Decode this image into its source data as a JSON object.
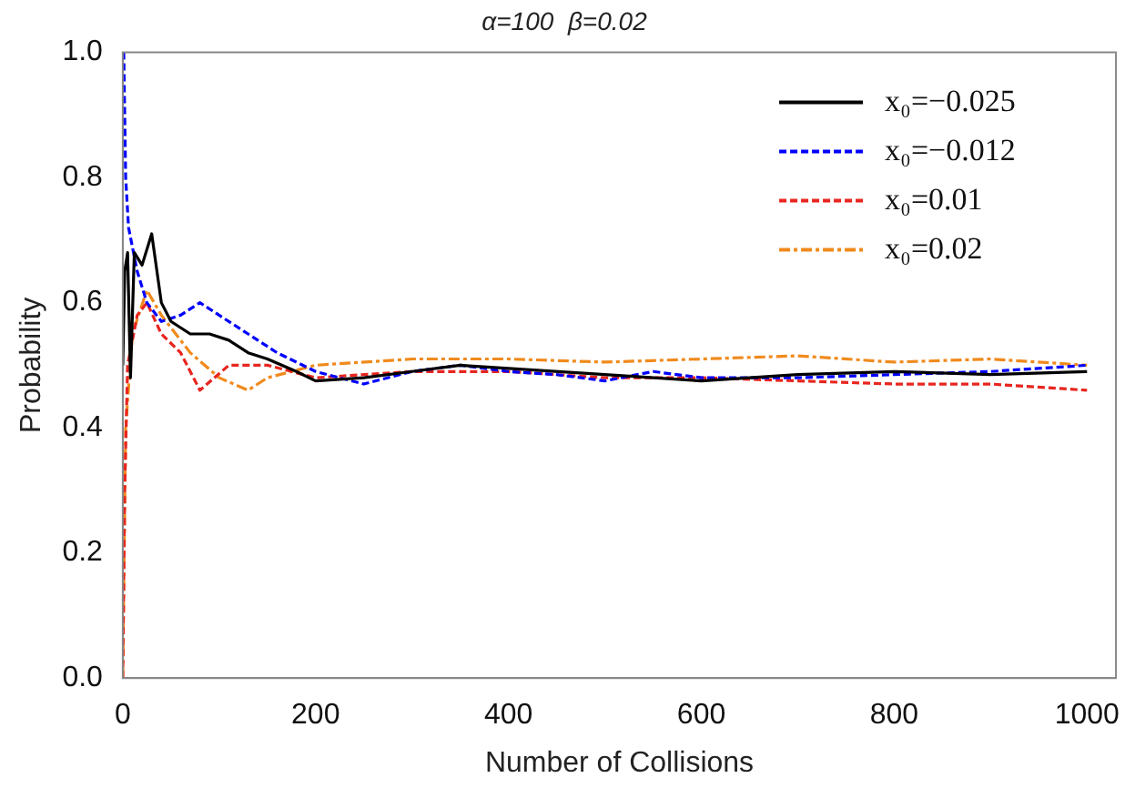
{
  "chart_data": {
    "type": "line",
    "title": "α=100  β=0.02",
    "xlabel": "Number of Collisions",
    "ylabel": "Probability",
    "xlim": [
      0,
      1030
    ],
    "xticks": [
      0,
      200,
      400,
      600,
      800,
      1000
    ],
    "ylim": [
      0,
      1
    ],
    "yticks": [
      {
        "value": 0,
        "label": "0.0"
      },
      {
        "value": 0.2,
        "label": "0.2"
      },
      {
        "value": 0.4,
        "label": "0.4"
      },
      {
        "value": 0.6,
        "label": "0.6"
      },
      {
        "value": 0.8,
        "label": "0.8"
      },
      {
        "value": 1,
        "label": "1.0"
      }
    ],
    "grid": false,
    "legend": "top right",
    "marker": "none",
    "series": [
      {
        "name": "x₀=−0.025",
        "color": "#000000",
        "line_style": "solid",
        "x": [
          0,
          2,
          5,
          8,
          12,
          20,
          30,
          40,
          50,
          70,
          90,
          110,
          130,
          150,
          180,
          200,
          250,
          300,
          350,
          400,
          500,
          600,
          700,
          800,
          900,
          1000
        ],
        "values": [
          0.5,
          0.65,
          0.68,
          0.48,
          0.68,
          0.66,
          0.71,
          0.6,
          0.57,
          0.55,
          0.55,
          0.54,
          0.52,
          0.51,
          0.49,
          0.475,
          0.48,
          0.49,
          0.5,
          0.495,
          0.485,
          0.475,
          0.485,
          0.49,
          0.485,
          0.49
        ]
      },
      {
        "name": "x₀=−0.012",
        "color": "#0000ff",
        "line_style": "dashed",
        "x": [
          1,
          3,
          6,
          15,
          25,
          40,
          60,
          80,
          100,
          130,
          160,
          200,
          250,
          300,
          350,
          400,
          450,
          500,
          550,
          600,
          700,
          800,
          900,
          1000
        ],
        "values": [
          1.0,
          0.8,
          0.72,
          0.65,
          0.6,
          0.57,
          0.58,
          0.6,
          0.58,
          0.55,
          0.52,
          0.49,
          0.47,
          0.49,
          0.5,
          0.49,
          0.485,
          0.475,
          0.49,
          0.48,
          0.48,
          0.485,
          0.49,
          0.5
        ]
      },
      {
        "name": "x₀=0.01",
        "color": "#e8251f",
        "line_style": "dashed",
        "x": [
          0,
          2,
          5,
          15,
          25,
          40,
          60,
          80,
          110,
          150,
          200,
          300,
          400,
          500,
          600,
          700,
          800,
          900,
          1000
        ],
        "values": [
          0,
          0.3,
          0.5,
          0.58,
          0.6,
          0.55,
          0.52,
          0.46,
          0.5,
          0.5,
          0.48,
          0.49,
          0.49,
          0.48,
          0.48,
          0.475,
          0.47,
          0.47,
          0.46
        ]
      },
      {
        "name": "x₀=0.02",
        "color": "#f08a1c",
        "line_style": "dashdot",
        "x": [
          0,
          3,
          10,
          25,
          40,
          70,
          100,
          130,
          150,
          200,
          300,
          400,
          500,
          600,
          700,
          800,
          900,
          1000
        ],
        "values": [
          0,
          0.4,
          0.55,
          0.62,
          0.58,
          0.52,
          0.48,
          0.46,
          0.48,
          0.5,
          0.51,
          0.51,
          0.505,
          0.51,
          0.515,
          0.505,
          0.51,
          0.5
        ]
      }
    ]
  }
}
